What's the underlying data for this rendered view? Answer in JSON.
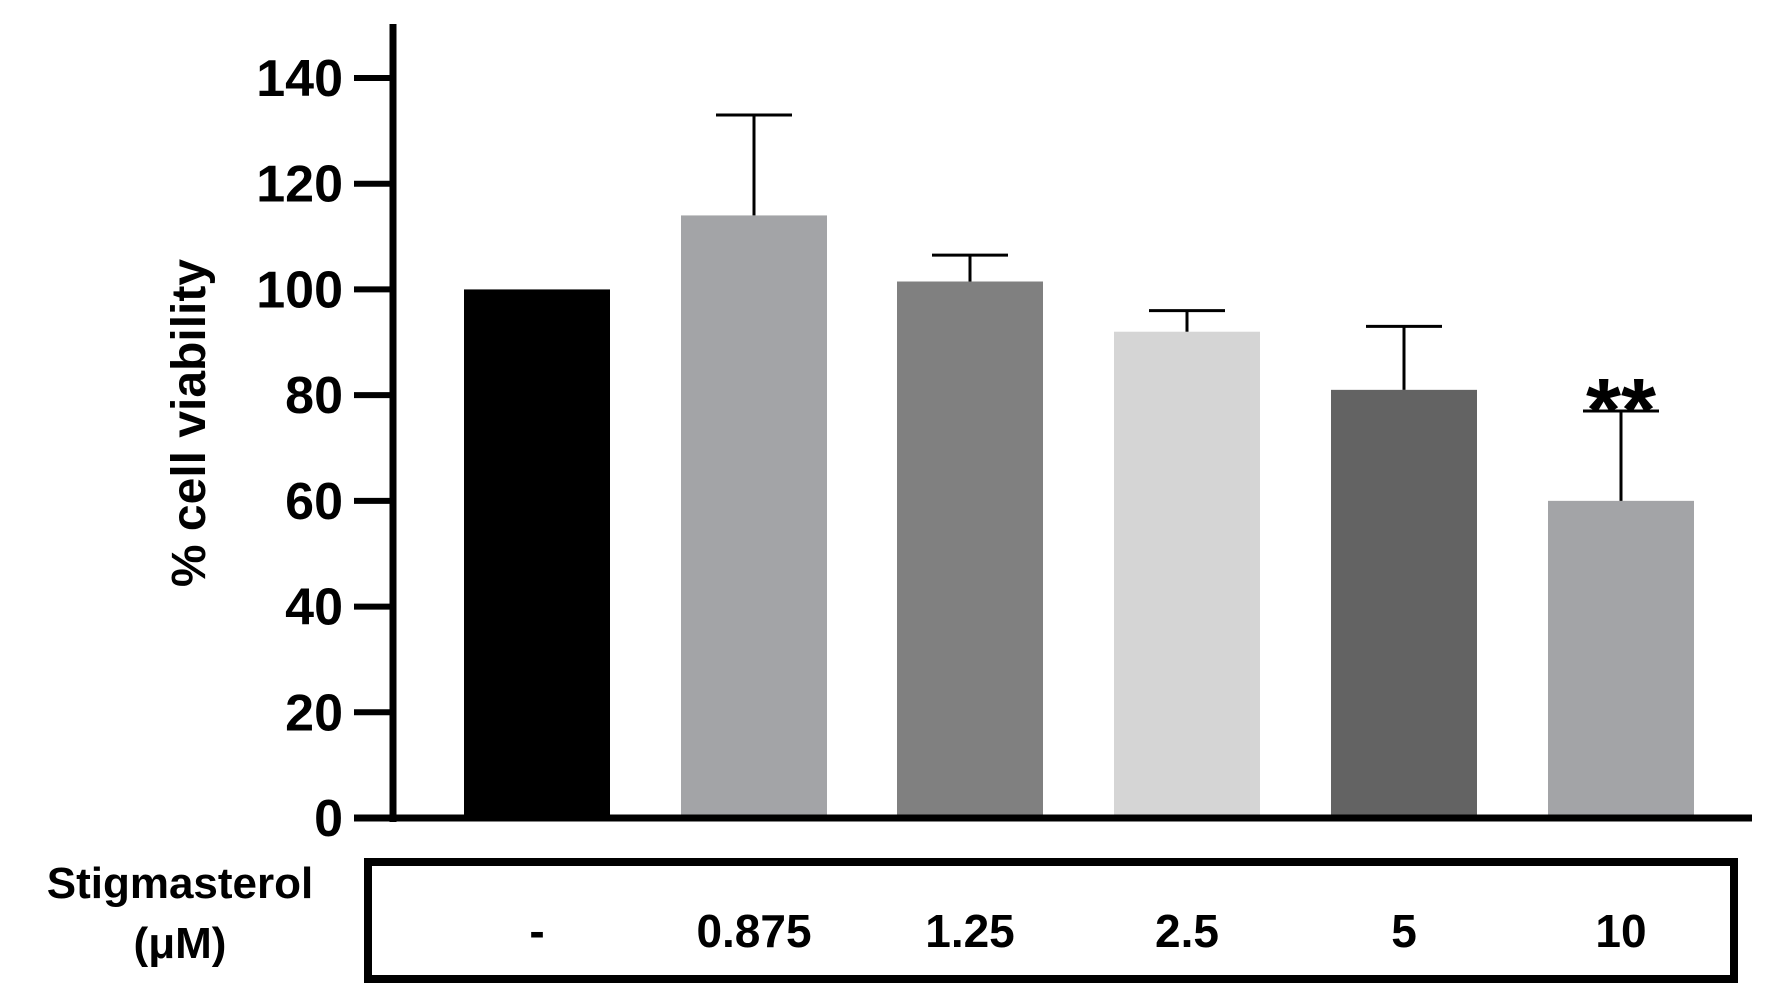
{
  "chart_data": {
    "type": "bar",
    "title": "",
    "xlabel": "Stigmasterol (μM)",
    "xlabel_lines": [
      "Stigmasterol",
      "(μM)"
    ],
    "ylabel": "% cell viability",
    "ylim": [
      0,
      140
    ],
    "yticks": [
      0,
      20,
      40,
      60,
      80,
      100,
      120,
      140
    ],
    "categories": [
      "-",
      "0.875",
      "1.25",
      "2.5",
      "5",
      "10"
    ],
    "values": [
      100,
      114,
      101.5,
      92,
      81,
      60
    ],
    "error_upper": [
      0,
      19,
      5,
      4,
      12,
      17
    ],
    "bar_colors": [
      "#000000",
      "#a3a4a7",
      "#808080",
      "#d5d5d5",
      "#636363",
      "#a3a4a7"
    ],
    "annotations": [
      {
        "category": "10",
        "text": "**"
      }
    ],
    "grid": false,
    "legend": "none"
  }
}
